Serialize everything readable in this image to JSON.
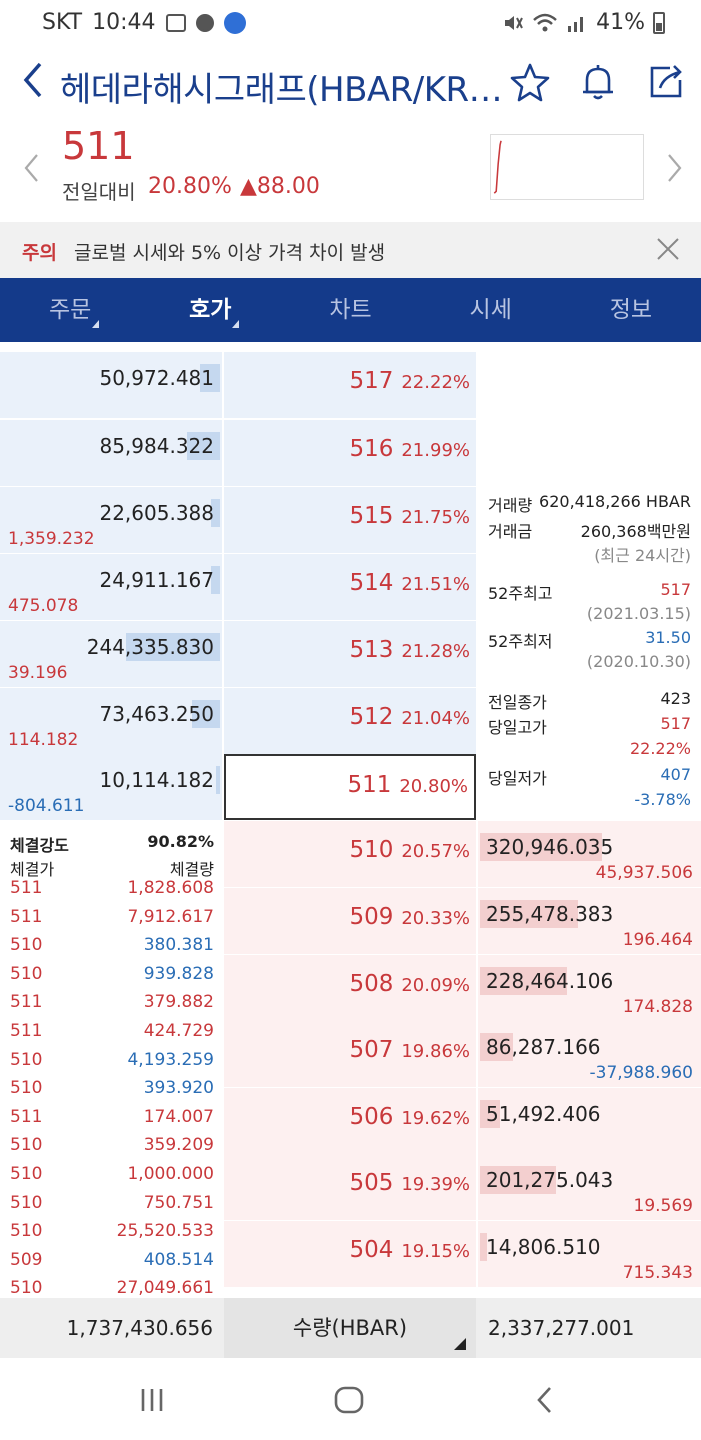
{
  "status_bar": {
    "carrier": "SKT",
    "time": "10:44",
    "battery": "41%"
  },
  "header": {
    "title": "헤데라해시그래프(HBAR/KR…"
  },
  "summary": {
    "price": "511",
    "change_label": "전일대비",
    "change_pct": "20.80%",
    "change_amount": "▲88.00"
  },
  "notice": {
    "tag": "주의",
    "message": "글로벌 시세와 5% 이상 가격 차이 발생"
  },
  "tabs": [
    {
      "label": "주문"
    },
    {
      "label": "호가"
    },
    {
      "label": "차트"
    },
    {
      "label": "시세"
    },
    {
      "label": "정보"
    }
  ],
  "asks": [
    {
      "qty": "50,972.481",
      "change": "",
      "price": "517",
      "pct": "22.22%",
      "level": 0.09
    },
    {
      "qty": "85,984.322",
      "change": "",
      "price": "516",
      "pct": "21.99%",
      "level": 0.15
    },
    {
      "qty": "22,605.388",
      "change": "1,359.232",
      "price": "515",
      "pct": "21.75%",
      "level": 0.04
    },
    {
      "qty": "24,911.167",
      "change": "475.078",
      "price": "514",
      "pct": "21.51%",
      "level": 0.04
    },
    {
      "qty": "244,335.830",
      "change": "39.196",
      "price": "513",
      "pct": "21.28%",
      "level": 0.43
    },
    {
      "qty": "73,463.250",
      "change": "114.182",
      "price": "512",
      "pct": "21.04%",
      "level": 0.13
    },
    {
      "qty": "10,114.182",
      "change": "-804.611",
      "price": "511",
      "pct": "20.80%",
      "level": 0.02
    }
  ],
  "bids": [
    {
      "qty": "320,946.035",
      "change": "45,937.506",
      "price": "510",
      "pct": "20.57%",
      "level": 0.56
    },
    {
      "qty": "255,478.383",
      "change": "196.464",
      "price": "509",
      "pct": "20.33%",
      "level": 0.45
    },
    {
      "qty": "228,464.106",
      "change": "174.828",
      "price": "508",
      "pct": "20.09%",
      "level": 0.4
    },
    {
      "qty": "86,287.166",
      "change": "-37,988.960",
      "price": "507",
      "pct": "19.86%",
      "level": 0.15
    },
    {
      "qty": "51,492.406",
      "change": "",
      "price": "506",
      "pct": "19.62%",
      "level": 0.09
    },
    {
      "qty": "201,275.043",
      "change": "19.569",
      "price": "505",
      "pct": "19.39%",
      "level": 0.35
    },
    {
      "qty": "14,806.510",
      "change": "715.343",
      "price": "504",
      "pct": "19.15%",
      "level": 0.03
    }
  ],
  "info": {
    "volume_label": "거래량",
    "volume_value": "620,418,266 HBAR",
    "amount_label": "거래금",
    "amount_value": "260,368백만원",
    "period_note": "(최근 24시간)",
    "high52_label": "52주최고",
    "high52_value": "517",
    "high52_date": "(2021.03.15)",
    "low52_label": "52주최저",
    "low52_value": "31.50",
    "low52_date": "(2020.10.30)",
    "prev_close_label": "전일종가",
    "prev_close_value": "423",
    "day_high_label": "당일고가",
    "day_high_value": "517",
    "day_high_pct": "22.22%",
    "day_low_label": "당일저가",
    "day_low_value": "407",
    "day_low_pct": "-3.78%"
  },
  "trades": {
    "strength_label": "체결강도",
    "strength_value": "90.82%",
    "price_header": "체결가",
    "qty_header": "체결량",
    "rows": [
      {
        "price": "511",
        "qty": "1,828.608",
        "dir": "up"
      },
      {
        "price": "511",
        "qty": "7,912.617",
        "dir": "up"
      },
      {
        "price": "510",
        "qty": "380.381",
        "dir": "dn"
      },
      {
        "price": "510",
        "qty": "939.828",
        "dir": "dn"
      },
      {
        "price": "511",
        "qty": "379.882",
        "dir": "up"
      },
      {
        "price": "511",
        "qty": "424.729",
        "dir": "up"
      },
      {
        "price": "510",
        "qty": "4,193.259",
        "dir": "dn"
      },
      {
        "price": "510",
        "qty": "393.920",
        "dir": "dn"
      },
      {
        "price": "511",
        "qty": "174.007",
        "dir": "up"
      },
      {
        "price": "510",
        "qty": "359.209",
        "dir": "up"
      },
      {
        "price": "510",
        "qty": "1,000.000",
        "dir": "up"
      },
      {
        "price": "510",
        "qty": "750.751",
        "dir": "up"
      },
      {
        "price": "510",
        "qty": "25,520.533",
        "dir": "up"
      },
      {
        "price": "509",
        "qty": "408.514",
        "dir": "dn"
      },
      {
        "price": "510",
        "qty": "27,049.661",
        "dir": "up"
      }
    ]
  },
  "totals": {
    "ask_total": "1,737,430.656",
    "unit_label": "수량(HBAR)",
    "bid_total": "2,337,277.001"
  },
  "colors": {
    "up": "#c8383b",
    "down": "#2a6db5",
    "tab_bg": "#143a8a",
    "title": "#1a3f8c"
  }
}
